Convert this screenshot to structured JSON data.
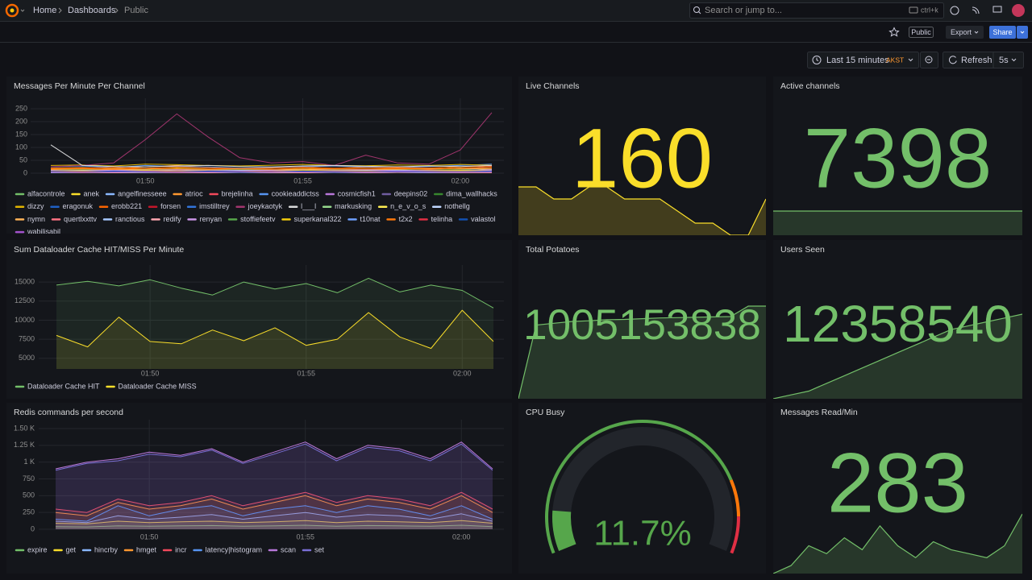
{
  "header": {
    "breadcrumb": [
      "Home",
      "Dashboards",
      "Public"
    ],
    "search_placeholder": "Search or jump to...",
    "search_shortcut": "ctrl+k"
  },
  "toolbar": {
    "tag": "Public",
    "export": "Export",
    "share": "Share"
  },
  "time_picker": {
    "range": "Last 15 minutes",
    "timezone": "AKST",
    "refresh": "Refresh",
    "interval": "5s"
  },
  "chart_data": [
    {
      "type": "line",
      "title": "Messages Per Minute Per Channel",
      "x": [
        "01:47",
        "01:48",
        "01:49",
        "01:50",
        "01:51",
        "01:52",
        "01:53",
        "01:54",
        "01:55",
        "01:56",
        "01:57",
        "01:58",
        "01:59",
        "02:00",
        "02:01"
      ],
      "xticks": [
        "01:50",
        "01:55",
        "02:00"
      ],
      "ylim": [
        0,
        272
      ],
      "yticks": [
        0,
        50,
        100,
        150,
        200,
        250
      ],
      "grid": true,
      "fill": false,
      "series": [
        {
          "name": "alfacontrole",
          "color": "#73bf69",
          "values": [
            8,
            10,
            9,
            12,
            11,
            10,
            9,
            12,
            14,
            10,
            9,
            11,
            10,
            12,
            9
          ]
        },
        {
          "name": "anek",
          "color": "#fade2a",
          "values": [
            15,
            12,
            18,
            14,
            20,
            16,
            12,
            15,
            18,
            14,
            16,
            13,
            15,
            20,
            14
          ]
        },
        {
          "name": "angelfinesseee",
          "color": "#8ab8ff",
          "values": [
            5,
            6,
            4,
            7,
            5,
            6,
            8,
            5,
            6,
            4,
            5,
            7,
            6,
            5,
            8
          ]
        },
        {
          "name": "atrioc",
          "color": "#ff9830",
          "values": [
            20,
            22,
            18,
            25,
            30,
            22,
            18,
            20,
            24,
            28,
            22,
            20,
            18,
            25,
            30
          ]
        },
        {
          "name": "brejelinha",
          "color": "#f2495c",
          "values": [
            3,
            4,
            3,
            5,
            4,
            3,
            4,
            5,
            3,
            4,
            3,
            5,
            4,
            3,
            4
          ]
        },
        {
          "name": "cookieaddictss",
          "color": "#5794f2",
          "values": [
            25,
            28,
            22,
            30,
            26,
            24,
            20,
            22,
            25,
            28,
            24,
            22,
            26,
            30,
            35
          ]
        },
        {
          "name": "cosmicfish1",
          "color": "#b877d9",
          "values": [
            10,
            12,
            14,
            11,
            13,
            15,
            12,
            10,
            14,
            12,
            11,
            13,
            15,
            12,
            28
          ]
        },
        {
          "name": "deepins02",
          "color": "#705da0",
          "values": [
            6,
            5,
            7,
            6,
            8,
            7,
            5,
            6,
            7,
            6,
            8,
            7,
            6,
            5,
            7
          ]
        },
        {
          "name": "dima_wallhacks",
          "color": "#37872d",
          "values": [
            12,
            14,
            11,
            13,
            15,
            12,
            14,
            13,
            11,
            12,
            14,
            13,
            12,
            15,
            11
          ]
        },
        {
          "name": "dizzy",
          "color": "#e0b400",
          "values": [
            30,
            32,
            28,
            35,
            33,
            30,
            28,
            31,
            34,
            30,
            29,
            32,
            30,
            34,
            31
          ]
        },
        {
          "name": "eragonuk",
          "color": "#1f60c4",
          "values": [
            2,
            3,
            2,
            4,
            3,
            2,
            3,
            2,
            4,
            3,
            2,
            3,
            2,
            4,
            3
          ]
        },
        {
          "name": "erobb221",
          "color": "#fa6400",
          "values": [
            18,
            20,
            22,
            19,
            24,
            21,
            18,
            20,
            23,
            19,
            21,
            22,
            20,
            24,
            26
          ]
        },
        {
          "name": "forsen",
          "color": "#c4162a",
          "values": [
            10,
            8,
            12,
            9,
            11,
            10,
            8,
            12,
            9,
            11,
            10,
            8,
            12,
            9,
            15
          ]
        },
        {
          "name": "imstilltrey",
          "color": "#3274d9",
          "values": [
            4,
            5,
            4,
            6,
            5,
            4,
            5,
            6,
            4,
            5,
            4,
            6,
            5,
            4,
            5
          ]
        },
        {
          "name": "joeykaotyk",
          "color": "#a1356d",
          "values": [
            25,
            30,
            40,
            130,
            230,
            140,
            60,
            40,
            45,
            30,
            70,
            40,
            35,
            90,
            235
          ]
        },
        {
          "name": "l___l",
          "color": "#d8d9da",
          "values": [
            110,
            30,
            26,
            25,
            28,
            30,
            26,
            24,
            28,
            30,
            27,
            25,
            28,
            26,
            30
          ]
        },
        {
          "name": "markusking",
          "color": "#96d98d",
          "values": [
            7,
            8,
            6,
            9,
            7,
            8,
            6,
            7,
            9,
            8,
            7,
            6,
            8,
            9,
            7
          ]
        },
        {
          "name": "n_e_v_o_s",
          "color": "#ffee52",
          "values": [
            5,
            4,
            6,
            5,
            4,
            6,
            5,
            4,
            5,
            6,
            4,
            5,
            6,
            4,
            5
          ]
        },
        {
          "name": "nothellg",
          "color": "#c0d8ff",
          "values": [
            9,
            11,
            10,
            12,
            9,
            10,
            11,
            12,
            10,
            9,
            11,
            12,
            10,
            11,
            13
          ]
        },
        {
          "name": "nymn",
          "color": "#ffb357",
          "values": [
            14,
            16,
            13,
            15,
            17,
            14,
            16,
            15,
            13,
            16,
            14,
            15,
            17,
            16,
            18
          ]
        },
        {
          "name": "quertlxxttv",
          "color": "#ff7383",
          "values": [
            3,
            2,
            4,
            3,
            2,
            3,
            4,
            2,
            3,
            4,
            2,
            3,
            4,
            3,
            2
          ]
        },
        {
          "name": "ranctious",
          "color": "#a6c8ff",
          "values": [
            6,
            7,
            5,
            8,
            6,
            7,
            5,
            6,
            8,
            7,
            6,
            5,
            7,
            8,
            6
          ]
        },
        {
          "name": "redify",
          "color": "#ffa6b0",
          "values": [
            2,
            3,
            2,
            2,
            3,
            2,
            3,
            2,
            2,
            3,
            2,
            3,
            2,
            2,
            3
          ]
        },
        {
          "name": "renyan",
          "color": "#ca95e5",
          "values": [
            11,
            9,
            12,
            10,
            13,
            11,
            9,
            12,
            10,
            11,
            13,
            9,
            12,
            10,
            11
          ]
        },
        {
          "name": "stoffiefeetv",
          "color": "#56a64b",
          "values": [
            4,
            5,
            6,
            4,
            5,
            6,
            4,
            5,
            6,
            4,
            5,
            6,
            4,
            5,
            6
          ]
        },
        {
          "name": "superkanal322",
          "color": "#f2cc0c",
          "values": [
            8,
            9,
            7,
            10,
            8,
            9,
            7,
            8,
            10,
            9,
            8,
            7,
            9,
            10,
            8
          ]
        },
        {
          "name": "t10nat",
          "color": "#6e9fff",
          "values": [
            3,
            4,
            5,
            3,
            4,
            5,
            3,
            4,
            5,
            3,
            4,
            5,
            3,
            4,
            5
          ]
        },
        {
          "name": "t2x2",
          "color": "#ff780a",
          "values": [
            16,
            18,
            15,
            19,
            17,
            16,
            18,
            15,
            19,
            17,
            16,
            18,
            15,
            19,
            22
          ]
        },
        {
          "name": "telinha",
          "color": "#e02f44",
          "values": [
            6,
            5,
            7,
            6,
            5,
            7,
            6,
            5,
            7,
            6,
            5,
            7,
            6,
            5,
            7
          ]
        },
        {
          "name": "valastol",
          "color": "#1250b0",
          "values": [
            7,
            6,
            8,
            7,
            6,
            8,
            7,
            6,
            8,
            7,
            6,
            8,
            7,
            6,
            8
          ]
        },
        {
          "name": "wabilisabil",
          "color": "#a352cc",
          "values": [
            5,
            6,
            5,
            7,
            6,
            5,
            6,
            7,
            5,
            6,
            5,
            7,
            6,
            5,
            6
          ]
        }
      ]
    },
    {
      "type": "stat",
      "title": "Live Channels",
      "value": 160,
      "color": "#fade2a",
      "sparkline": [
        164,
        164,
        163,
        163,
        164,
        164,
        163,
        163,
        163,
        162,
        161,
        161,
        160,
        160,
        163
      ]
    },
    {
      "type": "stat",
      "title": "Active channels",
      "value": 7398,
      "color": "#73bf69",
      "sparkline": [
        7398,
        7398,
        7398,
        7398,
        7398,
        7398,
        7398,
        7398,
        7398,
        7398,
        7398,
        7398,
        7398,
        7398,
        7398
      ]
    },
    {
      "type": "line",
      "title": "Sum Dataloader Cache HIT/MISS Per Minute",
      "x": [
        "01:47",
        "01:48",
        "01:49",
        "01:50",
        "01:51",
        "01:52",
        "01:53",
        "01:54",
        "01:55",
        "01:56",
        "01:57",
        "01:58",
        "01:59",
        "02:00",
        "02:01"
      ],
      "xticks": [
        "01:50",
        "01:55",
        "02:00"
      ],
      "ylim": [
        3600,
        16600
      ],
      "yticks": [
        5000,
        7500,
        10000,
        12500,
        15000
      ],
      "grid": true,
      "fill": true,
      "series": [
        {
          "name": "Dataloader Cache HIT",
          "color": "#73bf69",
          "values": [
            14600,
            15100,
            14500,
            15300,
            14200,
            13300,
            15000,
            14100,
            14800,
            13600,
            15500,
            13700,
            14600,
            13900,
            11600
          ]
        },
        {
          "name": "Dataloader Cache MISS",
          "color": "#fade2a",
          "values": [
            8000,
            6500,
            10400,
            7200,
            6900,
            8700,
            7300,
            9000,
            6700,
            7500,
            11000,
            7800,
            6300,
            11300,
            7200
          ]
        }
      ]
    },
    {
      "type": "stat",
      "title": "Total Potatoes",
      "value": 1005153838,
      "color": "#73bf69",
      "sparkline": [
        1005151200,
        1005153300,
        1005153350,
        1005153400,
        1005153420,
        1005153450,
        1005153460,
        1005153480,
        1005153500,
        1005153510,
        1005153520,
        1005153530,
        1005153540,
        1005153838,
        1005153838
      ]
    },
    {
      "type": "stat",
      "title": "Users Seen",
      "value": 12358540,
      "color": "#73bf69",
      "sparkline": [
        12358320,
        12358330,
        12358340,
        12358360,
        12358380,
        12358400,
        12358420,
        12358440,
        12358460,
        12358480,
        12358500,
        12358510,
        12358520,
        12358530,
        12358540
      ]
    },
    {
      "type": "line",
      "title": "Redis commands per second",
      "x": [
        "01:47",
        "01:48",
        "01:49",
        "01:50",
        "01:51",
        "01:52",
        "01:53",
        "01:54",
        "01:55",
        "01:56",
        "01:57",
        "01:58",
        "01:59",
        "02:00",
        "02:01"
      ],
      "xticks": [
        "01:50",
        "01:55",
        "02:00"
      ],
      "ylim": [
        0,
        1560
      ],
      "yticks": [
        0,
        250,
        500,
        750,
        {
          "value": 1000,
          "label": "1 K"
        },
        {
          "value": 1250,
          "label": "1.25 K"
        },
        {
          "value": 1500,
          "label": "1.50 K"
        }
      ],
      "grid": true,
      "fill": true,
      "series": [
        {
          "name": "expire",
          "color": "#73bf69",
          "values": [
            40,
            35,
            50,
            45,
            50,
            55,
            45,
            50,
            60,
            45,
            55,
            50,
            45,
            60,
            40
          ]
        },
        {
          "name": "get",
          "color": "#fade2a",
          "values": [
            90,
            80,
            120,
            100,
            110,
            120,
            100,
            110,
            130,
            100,
            120,
            110,
            100,
            130,
            90
          ]
        },
        {
          "name": "hincrby",
          "color": "#8ab8ff",
          "values": [
            120,
            100,
            200,
            150,
            180,
            220,
            150,
            200,
            250,
            180,
            220,
            200,
            150,
            230,
            120
          ]
        },
        {
          "name": "hmget",
          "color": "#ff9830",
          "values": [
            250,
            200,
            400,
            300,
            350,
            450,
            300,
            400,
            500,
            350,
            450,
            400,
            300,
            500,
            250
          ]
        },
        {
          "name": "incr",
          "color": "#f2495c",
          "values": [
            300,
            250,
            450,
            350,
            400,
            500,
            350,
            450,
            550,
            400,
            500,
            450,
            350,
            550,
            300
          ]
        },
        {
          "name": "latency|histogram",
          "color": "#5794f2",
          "values": [
            150,
            120,
            350,
            200,
            300,
            350,
            200,
            300,
            350,
            250,
            350,
            300,
            200,
            350,
            150
          ]
        },
        {
          "name": "scan",
          "color": "#b877d9",
          "values": [
            900,
            1000,
            1050,
            1150,
            1100,
            1200,
            1000,
            1150,
            1300,
            1050,
            1250,
            1200,
            1050,
            1300,
            900
          ]
        },
        {
          "name": "set",
          "color": "#7a6fd6",
          "values": [
            880,
            980,
            1020,
            1120,
            1080,
            1180,
            980,
            1120,
            1270,
            1020,
            1220,
            1170,
            1020,
            1270,
            880
          ]
        }
      ]
    },
    {
      "type": "gauge",
      "title": "CPU Busy",
      "value": 11.7,
      "value_label": "11.7%",
      "min": 0,
      "max": 100,
      "thresholds": [
        {
          "value": 0,
          "color": "#56a64b"
        },
        {
          "value": 80,
          "color": "#ff780a"
        },
        {
          "value": 90,
          "color": "#e02f44"
        }
      ]
    },
    {
      "type": "stat",
      "title": "Messages Read/Min",
      "value": 283,
      "color": "#73bf69",
      "sparkline": [
        180,
        200,
        250,
        230,
        270,
        240,
        300,
        250,
        220,
        260,
        240,
        230,
        220,
        250,
        330
      ]
    }
  ]
}
